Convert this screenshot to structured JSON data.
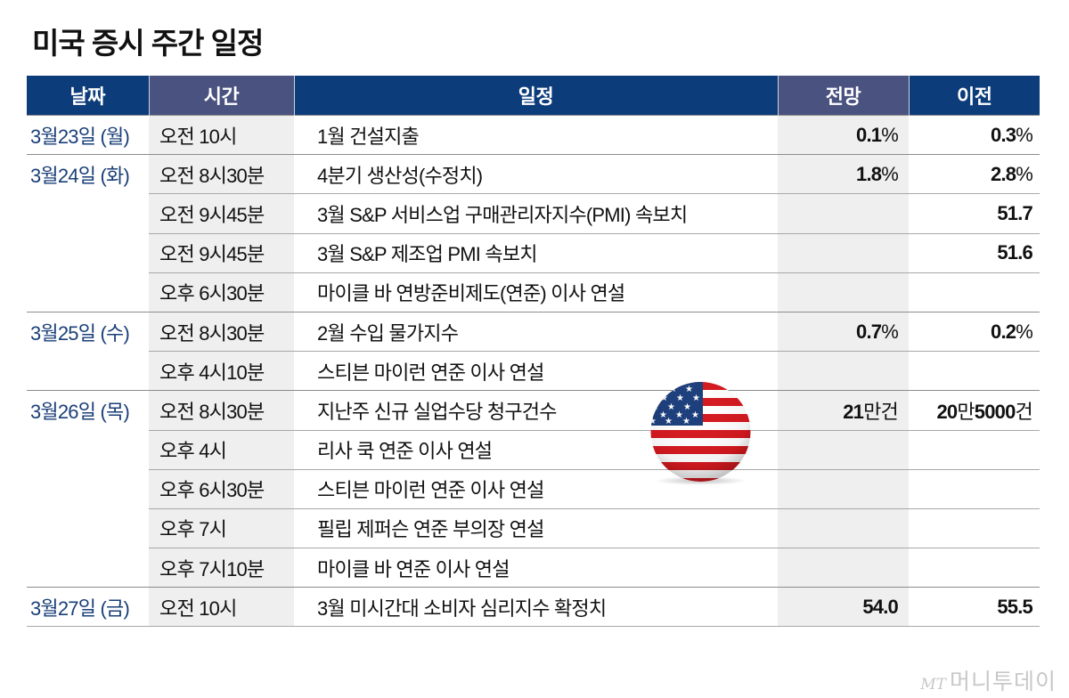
{
  "title": "미국 증시 주간 일정",
  "header": {
    "date": "날짜",
    "time": "시간",
    "event": "일정",
    "forecast": "전망",
    "previous": "이전"
  },
  "rows": [
    {
      "date": "3월23일 (월)",
      "time": "오전 10시",
      "event": "1월 건설지출",
      "forecast_num": "0.1",
      "forecast_unit": "%",
      "previous_num": "0.3",
      "previous_unit": "%"
    },
    {
      "date": "3월24일 (화)",
      "time": "오전 8시30분",
      "event": "4분기 생산성(수정치)",
      "forecast_num": "1.8",
      "forecast_unit": "%",
      "previous_num": "2.8",
      "previous_unit": "%"
    },
    {
      "date": "",
      "time": "오전 9시45분",
      "event": "3월 S&P 서비스업 구매관리자지수(PMI) 속보치",
      "forecast_num": "",
      "forecast_unit": "",
      "previous_num": "51.7",
      "previous_unit": ""
    },
    {
      "date": "",
      "time": "오전 9시45분",
      "event": "3월 S&P 제조업 PMI 속보치",
      "forecast_num": "",
      "forecast_unit": "",
      "previous_num": "51.6",
      "previous_unit": ""
    },
    {
      "date": "",
      "time": "오후 6시30분",
      "event": "마이클 바 연방준비제도(연준) 이사 연설",
      "forecast_num": "",
      "forecast_unit": "",
      "previous_num": "",
      "previous_unit": ""
    },
    {
      "date": "3월25일 (수)",
      "time": "오전 8시30분",
      "event": "2월 수입 물가지수",
      "forecast_num": "0.7",
      "forecast_unit": "%",
      "previous_num": "0.2",
      "previous_unit": "%"
    },
    {
      "date": "",
      "time": "오후 4시10분",
      "event": "스티븐 마이런 연준 이사 연설",
      "forecast_num": "",
      "forecast_unit": "",
      "previous_num": "",
      "previous_unit": ""
    },
    {
      "date": "3월26일 (목)",
      "time": "오전 8시30분",
      "event": "지난주 신규 실업수당 청구건수",
      "forecast_num": "21",
      "forecast_unit": "만건",
      "previous_num": "20",
      "previous_unit": "만",
      "previous_num2": "5000",
      "previous_unit2": "건"
    },
    {
      "date": "",
      "time": "오후 4시",
      "event": "리사 쿡 연준 이사 연설",
      "forecast_num": "",
      "forecast_unit": "",
      "previous_num": "",
      "previous_unit": ""
    },
    {
      "date": "",
      "time": "오후 6시30분",
      "event": "스티븐 마이런 연준 이사 연설",
      "forecast_num": "",
      "forecast_unit": "",
      "previous_num": "",
      "previous_unit": ""
    },
    {
      "date": "",
      "time": "오후 7시",
      "event": "필립 제퍼슨 연준 부의장 연설",
      "forecast_num": "",
      "forecast_unit": "",
      "previous_num": "",
      "previous_unit": ""
    },
    {
      "date": "",
      "time": "오후 7시10분",
      "event": "마이클 바 연준 이사 연설",
      "forecast_num": "",
      "forecast_unit": "",
      "previous_num": "",
      "previous_unit": ""
    },
    {
      "date": "3월27일 (금)",
      "time": "오전 10시",
      "event": "3월 미시간대 소비자 심리지수 확정치",
      "forecast_num": "54.0",
      "forecast_unit": "",
      "previous_num": "55.5",
      "previous_unit": ""
    }
  ],
  "decoration": {
    "flag_icon": "us-flag-icon"
  },
  "logo": {
    "mark": "MT",
    "name": "머니투데이"
  },
  "colors": {
    "header_blue": "#0d3c7a",
    "header_alt": "#4a5280",
    "date_text": "#1a3f78",
    "shade": "#efefef"
  }
}
